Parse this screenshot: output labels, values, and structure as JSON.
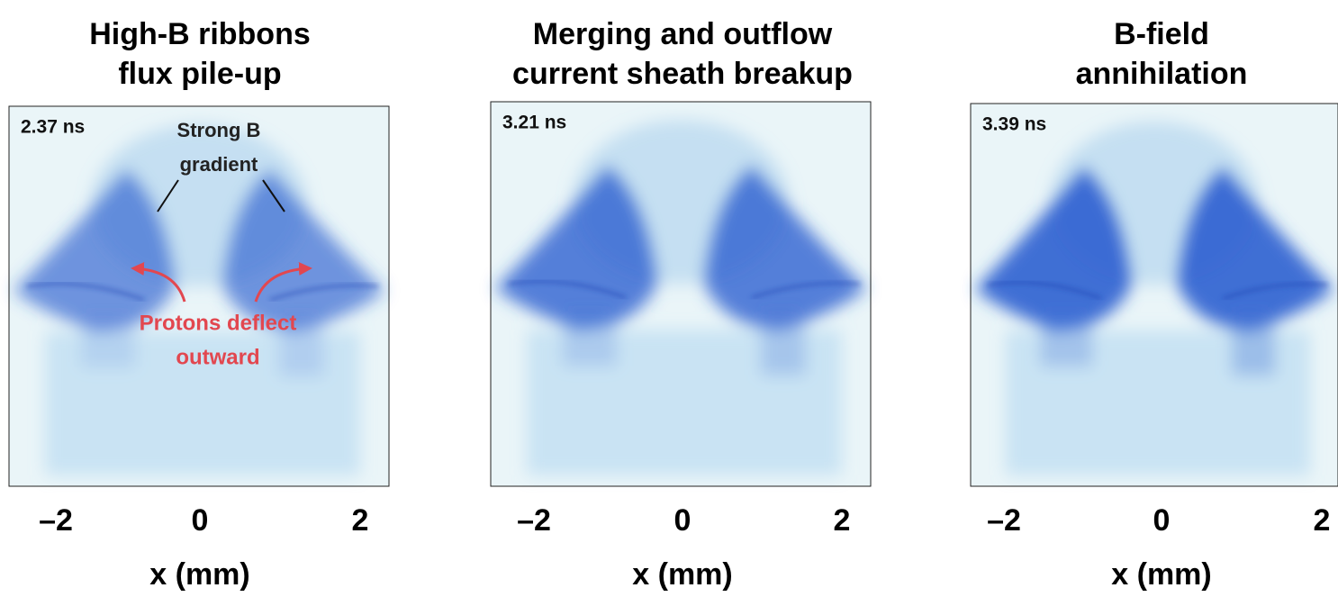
{
  "panels": [
    {
      "title": [
        "High-B ribbons",
        "flux pile-up"
      ],
      "time": "2.37 ns",
      "annotations": {
        "gradient": [
          "Strong B",
          "gradient"
        ],
        "deflect": [
          "Protons deflect",
          "outward"
        ]
      },
      "x_ticks": [
        "–2",
        "0",
        "2"
      ],
      "x_label": "x (mm)"
    },
    {
      "title": [
        "Merging and outflow",
        "current sheath breakup"
      ],
      "time": "3.21 ns",
      "x_ticks": [
        "–2",
        "0",
        "2"
      ],
      "x_label": "x (mm)"
    },
    {
      "title": [
        "B-field",
        "annihilation"
      ],
      "time": "3.39 ns",
      "x_ticks": [
        "–2",
        "0",
        "2"
      ],
      "x_label": "x (mm)"
    }
  ]
}
